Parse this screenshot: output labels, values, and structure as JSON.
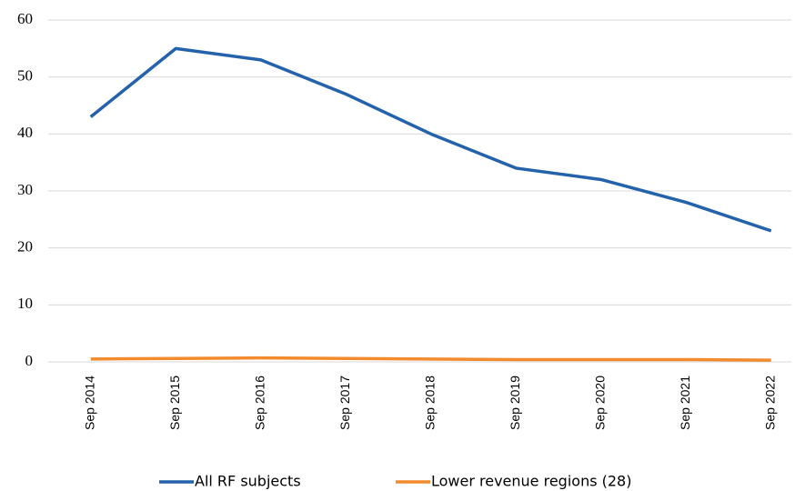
{
  "chart_data": {
    "type": "line",
    "categories": [
      "Sep 2014",
      "Sep 2015",
      "Sep 2016",
      "Sep 2017",
      "Sep 2018",
      "Sep 2019",
      "Sep 2020",
      "Sep 2021",
      "Sep 2022"
    ],
    "series": [
      {
        "name": "All RF subjects",
        "color": "#2462ab",
        "values": [
          43,
          55,
          53,
          47,
          40,
          34,
          32,
          28,
          23
        ]
      },
      {
        "name": "Lower revenue regions (28)",
        "color": "#f28a2e",
        "values": [
          0.5,
          0.6,
          0.7,
          0.6,
          0.5,
          0.4,
          0.4,
          0.4,
          0.3
        ]
      }
    ],
    "ylim": [
      0,
      60
    ],
    "yticks": [
      0,
      10,
      20,
      30,
      40,
      50,
      60
    ],
    "grid": true
  }
}
